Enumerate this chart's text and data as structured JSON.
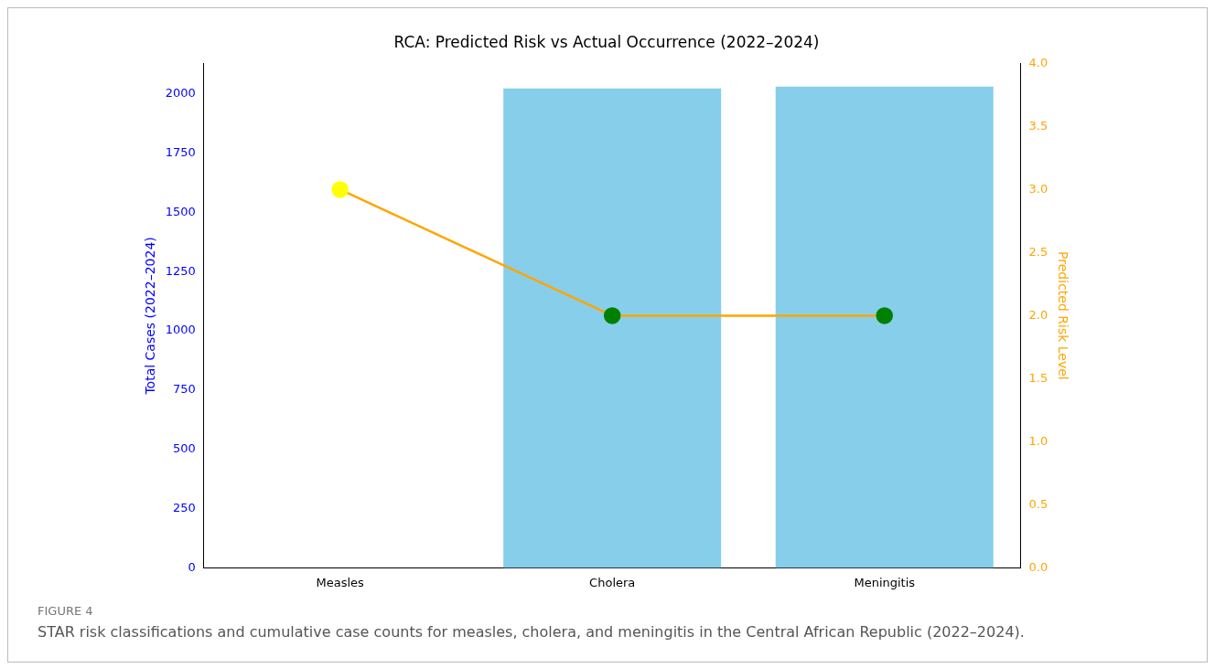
{
  "chart_data": {
    "type": "bar",
    "title": "RCA: Predicted Risk vs Actual Occurrence (2022–2024)",
    "ylabel": "Total Cases (2022–2024)",
    "y2label": "Predicted Risk Level",
    "categories": [
      "Measles",
      "Cholera",
      "Meningitis"
    ],
    "series": [
      {
        "color": "#87ceeb",
        "values": [
          0,
          2023,
          2030
        ]
      },
      {
        "type": "line",
        "axis": "y2",
        "color": "#ffa500",
        "colors": [
          "#ffff00",
          "#008000",
          "#008000"
        ],
        "marker": "circle",
        "values": [
          3,
          2,
          2
        ]
      }
    ],
    "ylim": [
      0,
      2128
    ],
    "yticks": [
      0,
      250,
      500,
      750,
      1000,
      1250,
      1500,
      1750,
      2000
    ],
    "y2lim": [
      0,
      4
    ],
    "y2ticks": [
      {
        "value": 0,
        "label": "0.0"
      },
      {
        "value": 0.5,
        "label": "0.5"
      },
      {
        "value": 1,
        "label": "1.0"
      },
      {
        "value": 1.5,
        "label": "1.5"
      },
      {
        "value": 2,
        "label": "2.0"
      },
      {
        "value": 2.5,
        "label": "2.5"
      },
      {
        "value": 3,
        "label": "3.0"
      },
      {
        "value": 3.5,
        "label": "3.5"
      },
      {
        "value": 4,
        "label": "4.0"
      }
    ],
    "grid": false,
    "legend": false,
    "annotations": [
      "FIGURE 4",
      "STAR risk classifications and cumulative case counts for measles, cholera, and meningitis in the Central African Republic (2022–2024)."
    ]
  }
}
